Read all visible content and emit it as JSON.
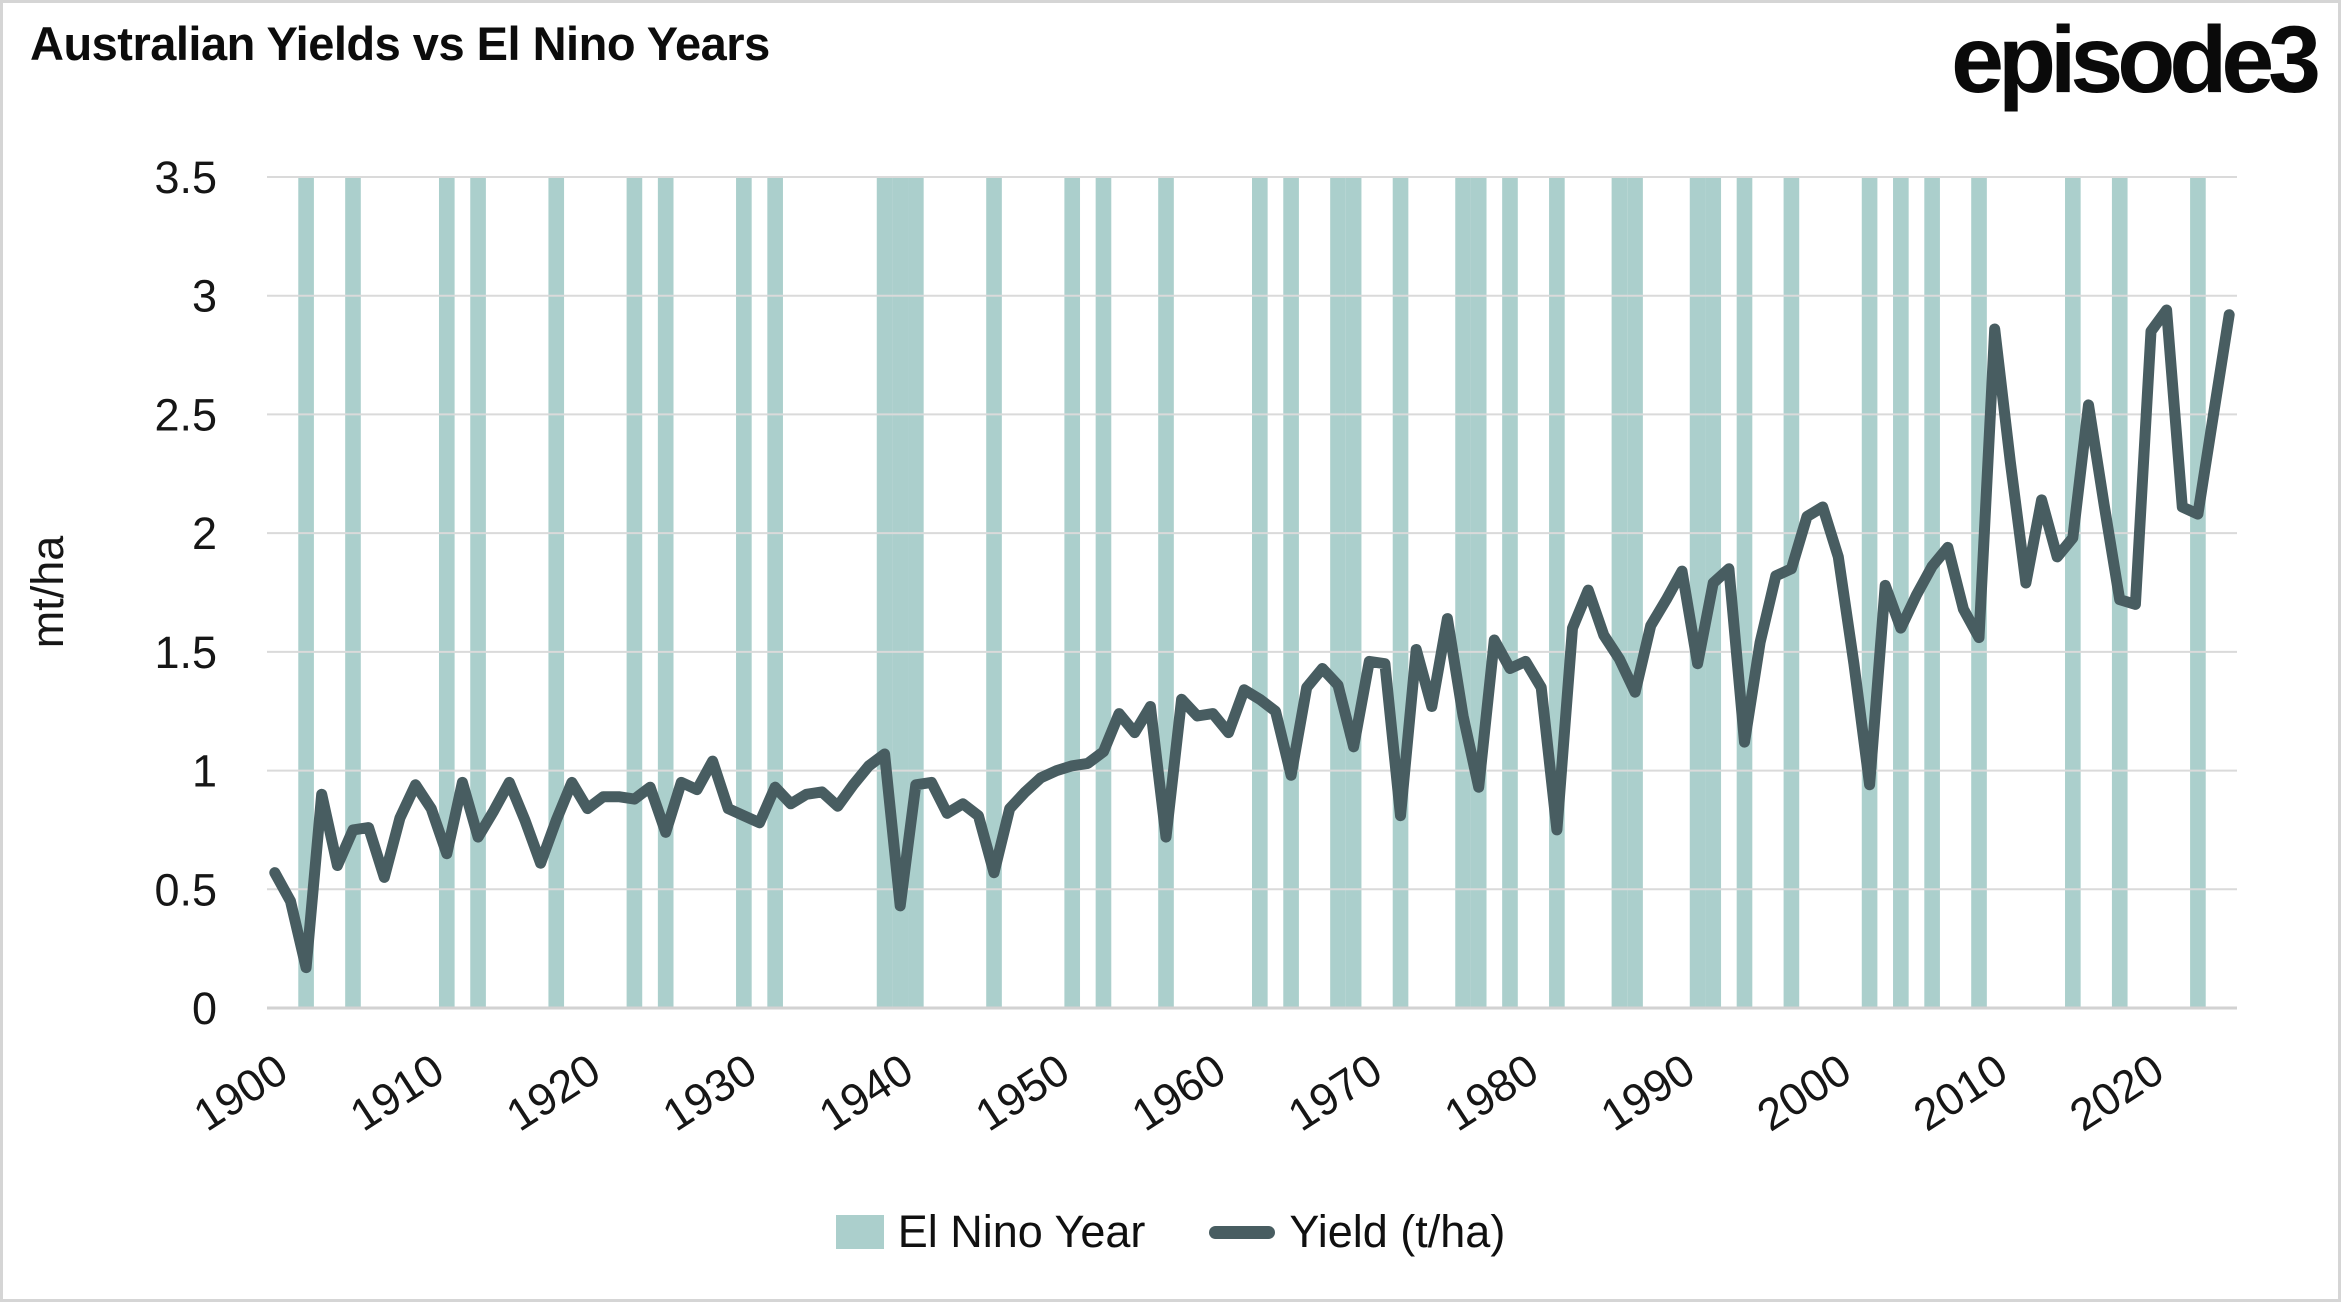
{
  "title": "Australian Yields vs El Nino Years",
  "logo": "episode3",
  "legend": {
    "band_label": "El Nino Year",
    "line_label": "Yield (t/ha)"
  },
  "chart_data": {
    "type": "line",
    "title": "Australian Yields vs El Nino Years",
    "xlabel": "",
    "ylabel": "mt/ha",
    "ylim": [
      0,
      3.5
    ],
    "ytick_labels": [
      "0",
      "0.5",
      "1",
      "1.5",
      "2",
      "2.5",
      "3",
      "3.5"
    ],
    "ytick_values": [
      0,
      0.5,
      1,
      1.5,
      2,
      2.5,
      3,
      3.5
    ],
    "xtick_labels": [
      "1900",
      "1910",
      "1920",
      "1930",
      "1940",
      "1950",
      "1960",
      "1970",
      "1980",
      "1990",
      "2000",
      "2010",
      "2020"
    ],
    "xtick_values": [
      1900,
      1910,
      1920,
      1930,
      1940,
      1950,
      1960,
      1970,
      1980,
      1990,
      2000,
      2010,
      2020
    ],
    "x_start": 1900,
    "x_end": 2025,
    "grid": true,
    "legend_position": "bottom",
    "colors": {
      "band": "#abcfcc",
      "line": "#485d61",
      "grid": "#dadada",
      "axis": "#d2d2d2",
      "text": "#161616"
    },
    "el_nino_years": [
      1902,
      1905,
      1911,
      1913,
      1918,
      1923,
      1925,
      1930,
      1932,
      1939,
      1940,
      1941,
      1946,
      1951,
      1953,
      1957,
      1963,
      1965,
      1968,
      1969,
      1972,
      1976,
      1977,
      1979,
      1982,
      1986,
      1987,
      1991,
      1992,
      1994,
      1997,
      2002,
      2004,
      2006,
      2009,
      2015,
      2018,
      2023
    ],
    "series": [
      {
        "name": "Yield (t/ha)",
        "x": [
          1900,
          1901,
          1902,
          1903,
          1904,
          1905,
          1906,
          1907,
          1908,
          1909,
          1910,
          1911,
          1912,
          1913,
          1914,
          1915,
          1916,
          1917,
          1918,
          1919,
          1920,
          1921,
          1922,
          1923,
          1924,
          1925,
          1926,
          1927,
          1928,
          1929,
          1930,
          1931,
          1932,
          1933,
          1934,
          1935,
          1936,
          1937,
          1938,
          1939,
          1940,
          1941,
          1942,
          1943,
          1944,
          1945,
          1946,
          1947,
          1948,
          1949,
          1950,
          1951,
          1952,
          1953,
          1954,
          1955,
          1956,
          1957,
          1958,
          1959,
          1960,
          1961,
          1962,
          1963,
          1964,
          1965,
          1966,
          1967,
          1968,
          1969,
          1970,
          1971,
          1972,
          1973,
          1974,
          1975,
          1976,
          1977,
          1978,
          1979,
          1980,
          1981,
          1982,
          1983,
          1984,
          1985,
          1986,
          1987,
          1988,
          1989,
          1990,
          1991,
          1992,
          1993,
          1994,
          1995,
          1996,
          1997,
          1998,
          1999,
          2000,
          2001,
          2002,
          2003,
          2004,
          2005,
          2006,
          2007,
          2008,
          2009,
          2010,
          2011,
          2012,
          2013,
          2014,
          2015,
          2016,
          2017,
          2018,
          2019,
          2020,
          2021,
          2022,
          2023,
          2024,
          2025
        ],
        "values": [
          0.57,
          0.45,
          0.17,
          0.9,
          0.6,
          0.75,
          0.76,
          0.55,
          0.8,
          0.94,
          0.84,
          0.65,
          0.95,
          0.72,
          0.83,
          0.95,
          0.79,
          0.61,
          0.79,
          0.95,
          0.84,
          0.89,
          0.89,
          0.88,
          0.93,
          0.74,
          0.95,
          0.92,
          1.04,
          0.84,
          0.81,
          0.78,
          0.93,
          0.86,
          0.9,
          0.91,
          0.85,
          0.94,
          1.02,
          1.07,
          0.43,
          0.94,
          0.95,
          0.82,
          0.86,
          0.81,
          0.57,
          0.84,
          0.91,
          0.97,
          1.0,
          1.02,
          1.03,
          1.08,
          1.24,
          1.16,
          1.27,
          0.72,
          1.3,
          1.23,
          1.24,
          1.16,
          1.34,
          1.3,
          1.25,
          0.98,
          1.35,
          1.43,
          1.36,
          1.1,
          1.46,
          1.45,
          0.81,
          1.51,
          1.27,
          1.64,
          1.23,
          0.93,
          1.55,
          1.43,
          1.46,
          1.35,
          0.75,
          1.6,
          1.76,
          1.57,
          1.47,
          1.33,
          1.61,
          1.72,
          1.84,
          1.45,
          1.79,
          1.85,
          1.12,
          1.54,
          1.82,
          1.85,
          2.07,
          2.11,
          1.9,
          1.45,
          0.94,
          1.78,
          1.6,
          1.74,
          1.86,
          1.94,
          1.68,
          1.56,
          2.86,
          2.3,
          1.79,
          2.14,
          1.9,
          1.98,
          2.54,
          2.12,
          1.72,
          1.7,
          2.85,
          2.94,
          2.11,
          2.08,
          2.5,
          2.92
        ]
      }
    ]
  }
}
